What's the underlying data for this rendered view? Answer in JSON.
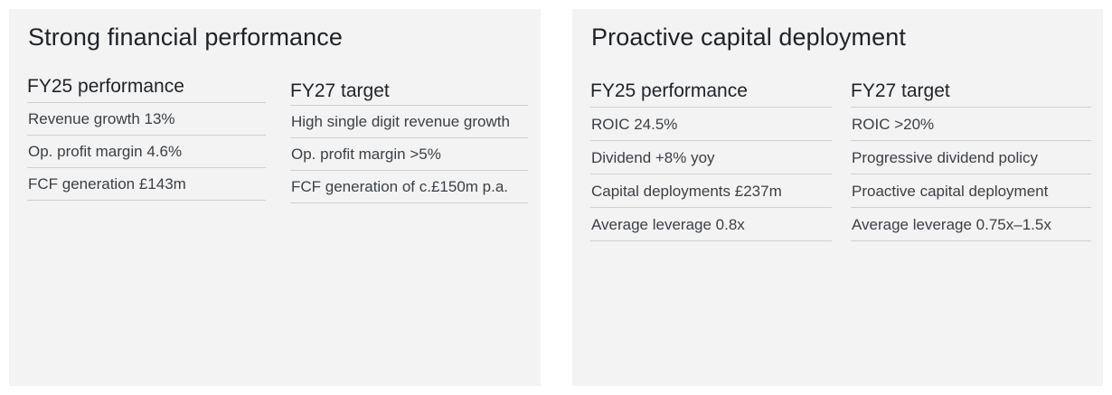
{
  "left_panel": {
    "title": "Strong financial performance",
    "col1": {
      "heading": "FY25 performance",
      "rows": [
        "Revenue growth 13%",
        "Op. profit margin 4.6%",
        "FCF generation £143m"
      ]
    },
    "col2": {
      "heading": "FY27 target",
      "rows": [
        "High single digit revenue growth",
        "Op. profit margin >5%",
        "FCF generation of c.£150m p.a."
      ]
    }
  },
  "right_panel": {
    "title": "Proactive capital deployment",
    "col1": {
      "heading": "FY25 performance",
      "rows": [
        "ROIC 24.5%",
        "Dividend +8% yoy",
        "Capital deployments £237m",
        "Average leverage 0.8x"
      ]
    },
    "col2": {
      "heading": "FY27 target",
      "rows": [
        "ROIC >20%",
        "Progressive dividend policy",
        "Proactive capital deployment",
        "Average leverage 0.75x–1.5x"
      ]
    }
  }
}
